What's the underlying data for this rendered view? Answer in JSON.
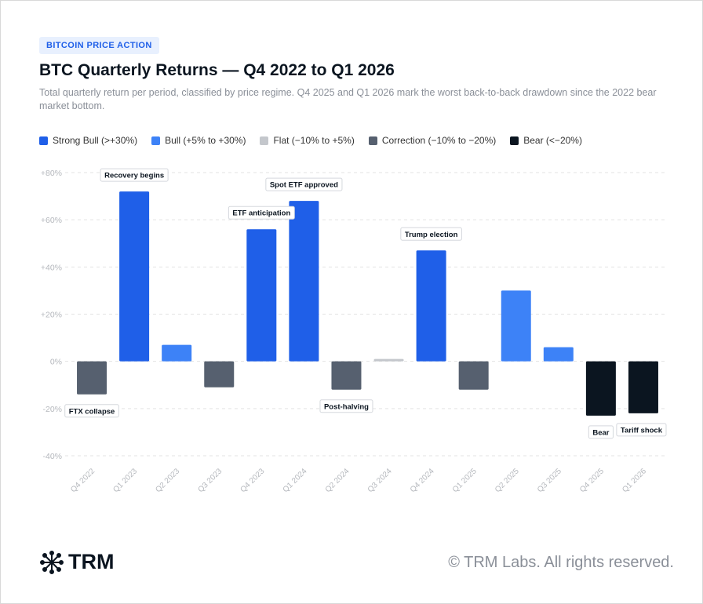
{
  "header": {
    "badge": "BITCOIN PRICE ACTION",
    "title": "BTC Quarterly Returns — Q4 2022 to Q1 2026",
    "subtitle": "Total quarterly return per period, classified by price regime. Q4 2025 and Q1 2026 mark the worst back-to-back drawdown since the 2022 bear market bottom."
  },
  "chart_data": {
    "type": "bar",
    "categories": [
      "Q4 2022",
      "Q1 2023",
      "Q2 2023",
      "Q3 2023",
      "Q4 2023",
      "Q1 2024",
      "Q2 2024",
      "Q3 2024",
      "Q4 2024",
      "Q1 2025",
      "Q2 2025",
      "Q3 2025",
      "Q4 2025",
      "Q1 2026"
    ],
    "values": [
      -14,
      72,
      7,
      -11,
      56,
      68,
      -12,
      1,
      47,
      -12,
      30,
      6,
      -23,
      -22
    ],
    "colors": [
      "#56606f",
      "#1f5fe8",
      "#3d82f7",
      "#56606f",
      "#1f5fe8",
      "#1f5fe8",
      "#56606f",
      "#c4c7cc",
      "#1f5fe8",
      "#56606f",
      "#3d82f7",
      "#3d82f7",
      "#0b1520",
      "#0b1520"
    ],
    "legend": [
      {
        "name": "Strong Bull (>+30%)",
        "color": "#1f5fe8"
      },
      {
        "name": "Bull (+5% to +30%)",
        "color": "#3d82f7"
      },
      {
        "name": "Flat (−10% to +5%)",
        "color": "#c4c7cc"
      },
      {
        "name": "Correction (−10% to −20%)",
        "color": "#56606f"
      },
      {
        "name": "Bear (<−20%)",
        "color": "#0b1520"
      }
    ],
    "annotations": [
      {
        "category": "Q4 2022",
        "text": "FTX collapse"
      },
      {
        "category": "Q1 2023",
        "text": "Recovery begins"
      },
      {
        "category": "Q4 2023",
        "text": "ETF anticipation"
      },
      {
        "category": "Q1 2024",
        "text": "Spot ETF approved"
      },
      {
        "category": "Q2 2024",
        "text": "Post-halving"
      },
      {
        "category": "Q4 2024",
        "text": "Trump election"
      },
      {
        "category": "Q4 2025",
        "text": "Bear"
      },
      {
        "category": "Q1 2026",
        "text": "Tariff shock"
      }
    ],
    "ylim": [
      -40,
      80
    ],
    "yticks": [
      {
        "value": -40,
        "label": "-40%"
      },
      {
        "value": -20,
        "label": "-20%"
      },
      {
        "value": 0,
        "label": "0%"
      },
      {
        "value": 20,
        "label": "+20%"
      },
      {
        "value": 40,
        "label": "+40%"
      },
      {
        "value": 60,
        "label": "+60%"
      },
      {
        "value": 80,
        "label": "+80%"
      }
    ],
    "grid": true
  },
  "footer": {
    "logo": "TRM",
    "copyright": "© TRM Labs. All rights reserved."
  }
}
